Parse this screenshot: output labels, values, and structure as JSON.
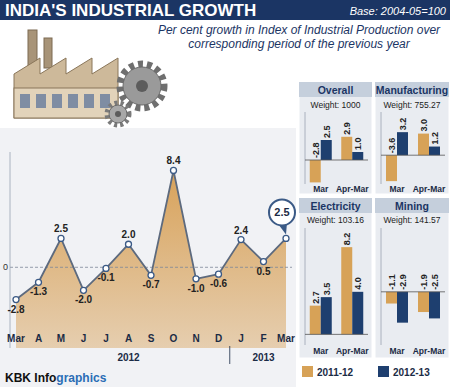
{
  "chart_data": [
    {
      "type": "area",
      "title": "INDIA'S INDUSTRIAL GROWTH",
      "subtitle": "Per cent growth in Index of Industrial Production over corresponding period of the previous year",
      "annotations": [
        "Base: 2004-05=100"
      ],
      "categories": [
        "Mar",
        "A",
        "M",
        "J",
        "J",
        "A",
        "S",
        "O",
        "N",
        "D",
        "J",
        "F",
        "Mar"
      ],
      "x_label_groups": [
        "2012",
        "2013"
      ],
      "values": [
        -2.8,
        -1.3,
        2.5,
        -2.0,
        -0.1,
        2.0,
        -0.7,
        8.4,
        -1.0,
        -0.6,
        2.4,
        0.5,
        2.5
      ],
      "value_labels": [
        "-2.8",
        "-1.3",
        "2.5",
        "-2.0",
        "-0.1",
        "2.0",
        "-0.7",
        "8.4",
        "-1.0",
        "-0.6",
        "2.4",
        "0.5",
        "2.5"
      ],
      "color": "#d8a25a",
      "marker": "circle",
      "data_labels": true,
      "ylim": [
        -7,
        10
      ],
      "yticks": [
        0
      ],
      "grid": true
    },
    {
      "type": "bar",
      "categories": [
        "Mar",
        "Apr-Mar"
      ],
      "series": [
        {
          "name": "2011-12",
          "color": "#d7a257"
        },
        {
          "name": "2012-13",
          "color": "#1e3f6f"
        }
      ],
      "data_labels": true,
      "legend": "bottom",
      "grid": true,
      "tick_labels": false,
      "panels": [
        {
          "title": "Overall",
          "subtitle": "Weight: 1000",
          "ylim": [
            -3,
            6
          ],
          "yticks": [
            0
          ],
          "series": [
            {
              "values": [
                -2.8,
                2.9
              ],
              "value_labels": [
                "-2.8",
                "2.9"
              ]
            },
            {
              "values": [
                2.5,
                1.0
              ],
              "value_labels": [
                "2.5",
                "1.0"
              ]
            }
          ]
        },
        {
          "title": "Manufacturing",
          "subtitle": "Weight: 755.27",
          "ylim": [
            -4,
            6
          ],
          "yticks": [
            0
          ],
          "series": [
            {
              "values": [
                -3.6,
                3.0
              ],
              "value_labels": [
                "-3.6",
                "3.0"
              ]
            },
            {
              "values": [
                3.2,
                1.2
              ],
              "value_labels": [
                "3.2",
                "1.2"
              ]
            }
          ]
        },
        {
          "title": "Electricity",
          "subtitle": "Weight: 103.16",
          "ylim": [
            -1,
            10
          ],
          "yticks": [
            0
          ],
          "series": [
            {
              "values": [
                2.7,
                8.2
              ],
              "value_labels": [
                "2.7",
                "8.2"
              ]
            },
            {
              "values": [
                3.5,
                4.0
              ],
              "value_labels": [
                "3.5",
                "4.0"
              ]
            }
          ]
        },
        {
          "title": "Mining",
          "subtitle": "Weight: 141.57",
          "ylim": [
            -5,
            6
          ],
          "yticks": [
            0
          ],
          "series": [
            {
              "values": [
                -1.1,
                -1.9
              ],
              "value_labels": [
                "-1.1",
                "-1.9"
              ]
            },
            {
              "values": [
                -2.9,
                -2.5
              ],
              "value_labels": [
                "-2.9",
                "-2.5"
              ]
            }
          ]
        }
      ]
    }
  ],
  "credit": [
    "KBK Info",
    "graphics"
  ]
}
